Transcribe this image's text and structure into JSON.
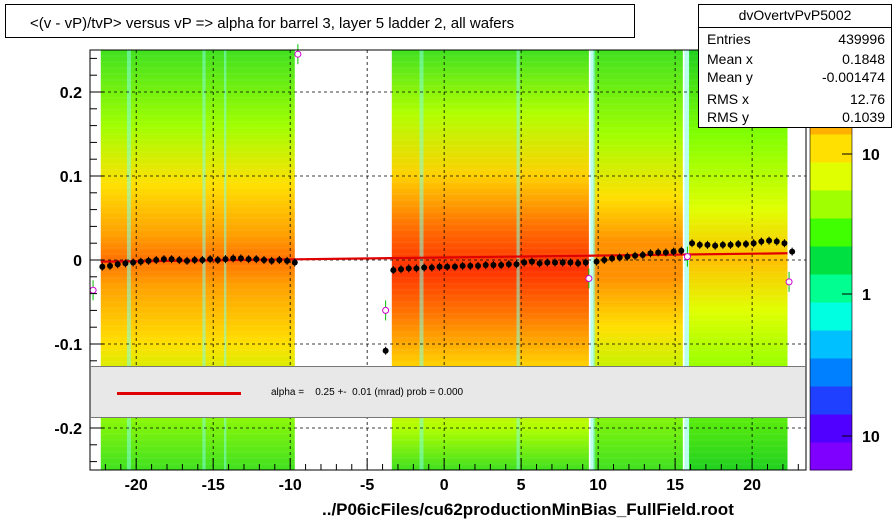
{
  "title": "<(v - vP)/tvP> versus   vP => alpha for barrel 3, layer 5 ladder 2, all wafers",
  "stats": {
    "name": "dvOvertvPvP5002",
    "rows": [
      {
        "label": "Entries",
        "value": "439996"
      },
      {
        "label": "Mean x",
        "value": "0.1848"
      },
      {
        "label": "Mean y",
        "value": "-0.001474"
      },
      {
        "label": "RMS x",
        "value": "12.76"
      },
      {
        "label": "RMS y",
        "value": "0.1039"
      }
    ]
  },
  "legend": {
    "fit_label": "alpha =    0.25 +-  0.01 (mrad) prob = 0.000",
    "fit_color": "#e00000"
  },
  "footer": "../P06icFiles/cu62productionMinBias_FullField.root",
  "chart_data": {
    "type": "heatmap",
    "xlim": [
      -23,
      23.5
    ],
    "ylim": [
      -0.25,
      0.25
    ],
    "x_ticks": [
      -20,
      -15,
      -10,
      -5,
      0,
      5,
      10,
      15,
      20
    ],
    "x_tick_labels": [
      "-20",
      "-15",
      "-10",
      "-5",
      "0",
      "5",
      "10",
      "15",
      "20"
    ],
    "y_ticks": [
      -0.2,
      -0.1,
      0,
      0.1,
      0.2
    ],
    "y_tick_labels": [
      "-0.2",
      "-0.1",
      "0",
      "0.1",
      "0.2"
    ],
    "grid": true,
    "colorbar": {
      "scale": "log",
      "tick_labels": [
        "10",
        "1",
        "10"
      ],
      "colors": [
        "#8000ff",
        "#5000ff",
        "#2040ff",
        "#0080ff",
        "#00c0ff",
        "#00ffe0",
        "#00ff90",
        "#00e040",
        "#40ff00",
        "#a0ff00",
        "#e0ff00",
        "#ffe000",
        "#ffb000",
        "#ff8000",
        "#ff4000"
      ]
    },
    "occupancy_bands": [
      {
        "x0": -22.3,
        "x1": -9.7
      },
      {
        "x0": -3.4,
        "x1": 9.4
      },
      {
        "x0": 9.7,
        "x1": 15.5
      },
      {
        "x0": 15.9,
        "x1": 22.3
      }
    ],
    "profile_points": [
      {
        "x": -22.2,
        "y": -0.008
      },
      {
        "x": -21.7,
        "y": -0.007
      },
      {
        "x": -21.2,
        "y": -0.005
      },
      {
        "x": -20.7,
        "y": -0.004
      },
      {
        "x": -20.2,
        "y": -0.003
      },
      {
        "x": -19.7,
        "y": -0.002
      },
      {
        "x": -19.2,
        "y": -0.001
      },
      {
        "x": -18.7,
        "y": 0.0
      },
      {
        "x": -18.2,
        "y": 0.001
      },
      {
        "x": -17.7,
        "y": 0.001
      },
      {
        "x": -17.2,
        "y": 0.0
      },
      {
        "x": -16.7,
        "y": -0.001
      },
      {
        "x": -16.2,
        "y": 0.0
      },
      {
        "x": -15.7,
        "y": 0.0
      },
      {
        "x": -15.2,
        "y": 0.001
      },
      {
        "x": -14.7,
        "y": 0.0
      },
      {
        "x": -14.2,
        "y": 0.001
      },
      {
        "x": -13.7,
        "y": 0.002
      },
      {
        "x": -13.2,
        "y": 0.002
      },
      {
        "x": -12.7,
        "y": 0.001
      },
      {
        "x": -12.2,
        "y": 0.001
      },
      {
        "x": -11.7,
        "y": 0.0
      },
      {
        "x": -11.2,
        "y": -0.001
      },
      {
        "x": -10.7,
        "y": 0.0
      },
      {
        "x": -10.2,
        "y": -0.001
      },
      {
        "x": -9.7,
        "y": -0.003
      },
      {
        "x": -3.8,
        "y": -0.108
      },
      {
        "x": -3.3,
        "y": -0.012
      },
      {
        "x": -2.8,
        "y": -0.011
      },
      {
        "x": -2.3,
        "y": -0.01
      },
      {
        "x": -1.8,
        "y": -0.01
      },
      {
        "x": -1.3,
        "y": -0.009
      },
      {
        "x": -0.8,
        "y": -0.009
      },
      {
        "x": -0.3,
        "y": -0.008
      },
      {
        "x": 0.2,
        "y": -0.008
      },
      {
        "x": 0.7,
        "y": -0.008
      },
      {
        "x": 1.2,
        "y": -0.007
      },
      {
        "x": 1.7,
        "y": -0.007
      },
      {
        "x": 2.2,
        "y": -0.007
      },
      {
        "x": 2.7,
        "y": -0.006
      },
      {
        "x": 3.2,
        "y": -0.006
      },
      {
        "x": 3.7,
        "y": -0.006
      },
      {
        "x": 4.2,
        "y": -0.005
      },
      {
        "x": 4.7,
        "y": -0.005
      },
      {
        "x": 5.2,
        "y": -0.003
      },
      {
        "x": 5.7,
        "y": -0.002
      },
      {
        "x": 6.2,
        "y": -0.004
      },
      {
        "x": 6.7,
        "y": -0.003
      },
      {
        "x": 7.2,
        "y": -0.003
      },
      {
        "x": 7.7,
        "y": -0.003
      },
      {
        "x": 8.2,
        "y": -0.003
      },
      {
        "x": 8.7,
        "y": -0.004
      },
      {
        "x": 9.2,
        "y": -0.003
      },
      {
        "x": 9.9,
        "y": -0.002
      },
      {
        "x": 10.4,
        "y": 0.0
      },
      {
        "x": 10.9,
        "y": 0.002
      },
      {
        "x": 11.4,
        "y": 0.003
      },
      {
        "x": 11.9,
        "y": 0.004
      },
      {
        "x": 12.4,
        "y": 0.005
      },
      {
        "x": 12.9,
        "y": 0.006
      },
      {
        "x": 13.4,
        "y": 0.008
      },
      {
        "x": 13.9,
        "y": 0.009
      },
      {
        "x": 14.4,
        "y": 0.009
      },
      {
        "x": 14.9,
        "y": 0.01
      },
      {
        "x": 15.4,
        "y": 0.011
      },
      {
        "x": 16.1,
        "y": 0.02
      },
      {
        "x": 16.6,
        "y": 0.018
      },
      {
        "x": 17.1,
        "y": 0.018
      },
      {
        "x": 17.6,
        "y": 0.017
      },
      {
        "x": 18.1,
        "y": 0.018
      },
      {
        "x": 18.6,
        "y": 0.018
      },
      {
        "x": 19.1,
        "y": 0.019
      },
      {
        "x": 19.6,
        "y": 0.019
      },
      {
        "x": 20.1,
        "y": 0.02
      },
      {
        "x": 20.6,
        "y": 0.022
      },
      {
        "x": 21.1,
        "y": 0.023
      },
      {
        "x": 21.6,
        "y": 0.022
      },
      {
        "x": 22.1,
        "y": 0.02
      },
      {
        "x": 22.6,
        "y": 0.01
      }
    ],
    "open_points": [
      {
        "x": -22.8,
        "y": -0.036
      },
      {
        "x": -9.5,
        "y": 0.245
      },
      {
        "x": -3.8,
        "y": -0.06
      },
      {
        "x": 9.4,
        "y": -0.022
      },
      {
        "x": 15.8,
        "y": 0.004
      },
      {
        "x": 22.4,
        "y": -0.026
      }
    ],
    "fit_line": {
      "x0": -22.3,
      "y0": -0.002,
      "x1": 22.3,
      "y1": 0.008
    }
  }
}
